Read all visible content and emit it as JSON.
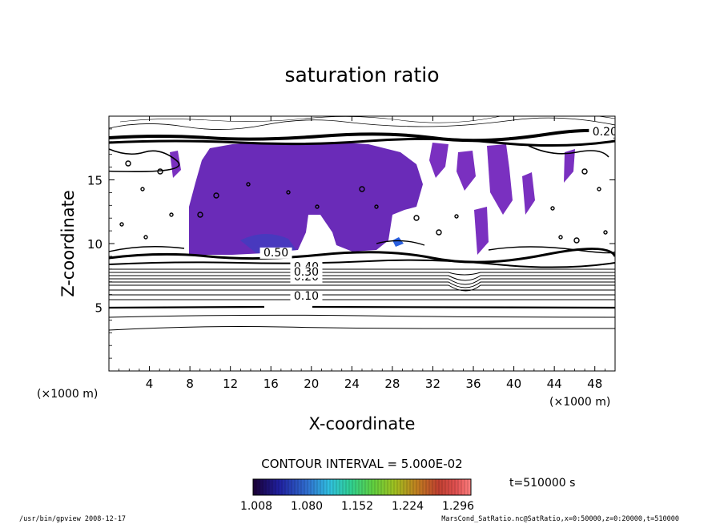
{
  "chart_data": {
    "type": "contour",
    "title": "saturation ratio",
    "xlabel": "X-coordinate",
    "ylabel": "Z-coordinate",
    "x_unit_left": "(×1000 m)",
    "x_unit_right": "(×1000 m)",
    "xlim": [
      0,
      50
    ],
    "ylim": [
      0,
      20
    ],
    "x_ticks": [
      4,
      8,
      12,
      16,
      20,
      24,
      28,
      32,
      36,
      40,
      44,
      48
    ],
    "y_ticks": [
      5,
      10,
      15
    ],
    "contour_interval_text": "CONTOUR INTERVAL = 5.000E-02",
    "contour_levels_labeled": [
      {
        "label": "0.10",
        "x": 19.5,
        "z": 5.6
      },
      {
        "label": "0.20",
        "x": 19.5,
        "z": 7.1
      },
      {
        "label": "0.40",
        "x": 19.5,
        "z": 7.9
      },
      {
        "label": "0.50",
        "x": 16.5,
        "z": 9.0
      },
      {
        "label": "0.30",
        "x": 19.5,
        "z": 7.5
      },
      {
        "label": "0.20",
        "x": 49.0,
        "z": 18.5
      }
    ],
    "colorbar": {
      "range": [
        1.008,
        1.296
      ],
      "tick_labels": [
        "1.008",
        "1.080",
        "1.152",
        "1.224",
        "1.296"
      ],
      "colors": [
        "#1a0033",
        "#2020a0",
        "#3070d0",
        "#30c0e0",
        "#30d090",
        "#60d040",
        "#a0c020",
        "#c08020",
        "#c04030",
        "#e05050",
        "#ff8080"
      ]
    },
    "time_label": "t=510000 s"
  },
  "footer": {
    "left": "/usr/bin/gpview   2008-12-17",
    "right": "MarsCond_SatRatio.nc@SatRatio,x=0:50000,z=0:20000,t=510000"
  }
}
